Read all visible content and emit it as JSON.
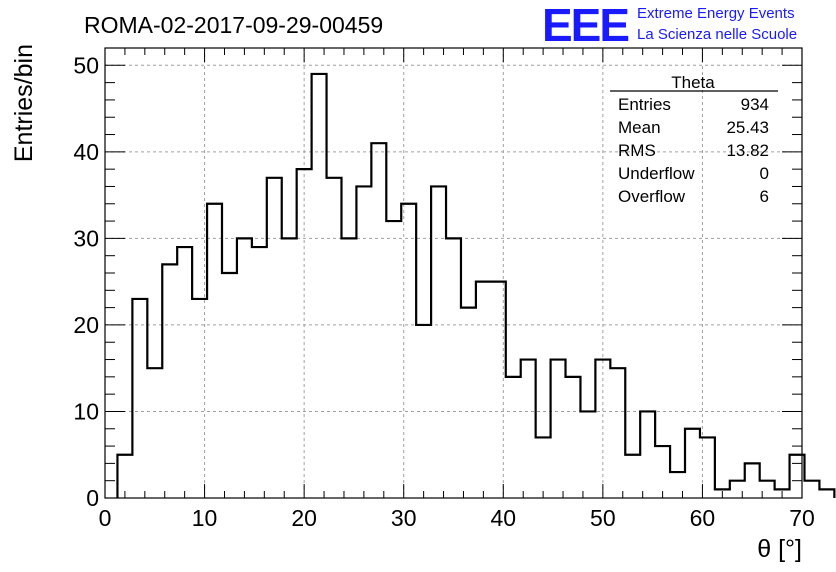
{
  "header": {
    "run_title": "ROMA-02-2017-09-29-00459",
    "logo_mark": "EEE",
    "logo_line1": "Extreme Energy Events",
    "logo_line2": "La Scienza nelle Scuole"
  },
  "stats_box": {
    "title": "Theta",
    "rows": [
      {
        "label": "Entries",
        "value": "934"
      },
      {
        "label": "Mean",
        "value": "25.43"
      },
      {
        "label": "RMS",
        "value": "13.82"
      },
      {
        "label": "Underflow",
        "value": "0"
      },
      {
        "label": "Overflow",
        "value": "6"
      }
    ]
  },
  "colors": {
    "line": "#000000",
    "grid": "#a0a0a0",
    "logo": "#1a1aff"
  },
  "chart_data": {
    "type": "bar",
    "style": "step-histogram",
    "title": "ROMA-02-2017-09-29-00459",
    "xlabel": "θ [°]",
    "ylabel": "Entries/bin",
    "xlim": [
      0,
      70
    ],
    "ylim": [
      0,
      52
    ],
    "xticks": [
      "0",
      "10",
      "20",
      "30",
      "40",
      "50",
      "60",
      "70"
    ],
    "yticks": [
      "0",
      "10",
      "20",
      "30",
      "40",
      "50"
    ],
    "grid": true,
    "bin_edges_start": 1.25,
    "bin_width": 1.5,
    "values": [
      5,
      23,
      15,
      27,
      29,
      23,
      34,
      26,
      30,
      29,
      37,
      30,
      38,
      49,
      37,
      30,
      36,
      41,
      32,
      34,
      20,
      36,
      30,
      22,
      25,
      25,
      14,
      16,
      7,
      16,
      14,
      10,
      16,
      15,
      5,
      10,
      6,
      3,
      8,
      7,
      1,
      2,
      4,
      2,
      1,
      5,
      2,
      1
    ]
  }
}
